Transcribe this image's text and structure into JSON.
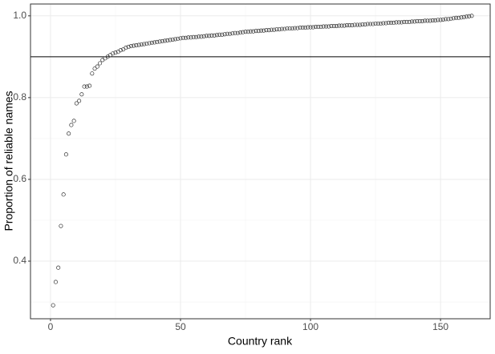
{
  "chart_data": {
    "type": "scatter",
    "x_label": "Country rank",
    "y_label": "Proportion of reliable names",
    "xlim": [
      -7.7,
      169.1
    ],
    "ylim": [
      0.259,
      1.029
    ],
    "xticks": [
      0,
      50,
      100,
      150
    ],
    "yticks": [
      0.4,
      0.6,
      0.8,
      {
        "value": 1,
        "label": "1.0"
      }
    ],
    "xminor": [
      25,
      75,
      125
    ],
    "yminor": [
      0.3,
      0.5,
      0.7,
      0.9
    ],
    "grid": true,
    "hline": 0.9,
    "color": "#333333",
    "x": [
      1,
      2,
      3,
      4,
      5,
      6,
      7,
      8,
      9,
      10,
      11,
      12,
      13,
      14,
      15,
      16,
      17,
      18,
      19,
      20,
      21,
      22,
      23,
      24,
      25,
      26,
      27,
      28,
      29,
      30,
      31,
      32,
      33,
      34,
      35,
      36,
      37,
      38,
      39,
      40,
      41,
      42,
      43,
      44,
      45,
      46,
      47,
      48,
      49,
      50,
      51,
      52,
      53,
      54,
      55,
      56,
      57,
      58,
      59,
      60,
      61,
      62,
      63,
      64,
      65,
      66,
      67,
      68,
      69,
      70,
      71,
      72,
      73,
      74,
      75,
      76,
      77,
      78,
      79,
      80,
      81,
      82,
      83,
      84,
      85,
      86,
      87,
      88,
      89,
      90,
      91,
      92,
      93,
      94,
      95,
      96,
      97,
      98,
      99,
      100,
      101,
      102,
      103,
      104,
      105,
      106,
      107,
      108,
      109,
      110,
      111,
      112,
      113,
      114,
      115,
      116,
      117,
      118,
      119,
      120,
      121,
      122,
      123,
      124,
      125,
      126,
      127,
      128,
      129,
      130,
      131,
      132,
      133,
      134,
      135,
      136,
      137,
      138,
      139,
      140,
      141,
      142,
      143,
      144,
      145,
      146,
      147,
      148,
      149,
      150,
      151,
      152,
      153,
      154,
      155,
      156,
      157,
      158,
      159,
      160,
      161,
      162
    ],
    "values": [
      0.292,
      0.349,
      0.384,
      0.486,
      0.563,
      0.661,
      0.712,
      0.733,
      0.743,
      0.786,
      0.792,
      0.808,
      0.827,
      0.827,
      0.829,
      0.859,
      0.871,
      0.876,
      0.884,
      0.892,
      0.896,
      0.9,
      0.904,
      0.908,
      0.91,
      0.912,
      0.916,
      0.918,
      0.922,
      0.924,
      0.926,
      0.927,
      0.928,
      0.929,
      0.93,
      0.931,
      0.932,
      0.933,
      0.934,
      0.935,
      0.936,
      0.937,
      0.938,
      0.939,
      0.94,
      0.941,
      0.942,
      0.943,
      0.944,
      0.945,
      0.946,
      0.946,
      0.947,
      0.947,
      0.948,
      0.948,
      0.949,
      0.949,
      0.95,
      0.951,
      0.951,
      0.952,
      0.952,
      0.953,
      0.954,
      0.954,
      0.955,
      0.956,
      0.956,
      0.957,
      0.958,
      0.958,
      0.959,
      0.96,
      0.961,
      0.961,
      0.962,
      0.962,
      0.963,
      0.963,
      0.964,
      0.964,
      0.965,
      0.965,
      0.966,
      0.966,
      0.967,
      0.967,
      0.968,
      0.968,
      0.969,
      0.969,
      0.969,
      0.97,
      0.97,
      0.971,
      0.971,
      0.971,
      0.972,
      0.972,
      0.972,
      0.973,
      0.973,
      0.973,
      0.974,
      0.974,
      0.974,
      0.975,
      0.975,
      0.975,
      0.976,
      0.976,
      0.976,
      0.977,
      0.977,
      0.977,
      0.978,
      0.978,
      0.978,
      0.979,
      0.979,
      0.98,
      0.98,
      0.98,
      0.981,
      0.981,
      0.981,
      0.982,
      0.982,
      0.983,
      0.983,
      0.983,
      0.984,
      0.984,
      0.984,
      0.985,
      0.985,
      0.985,
      0.986,
      0.986,
      0.987,
      0.987,
      0.987,
      0.988,
      0.988,
      0.988,
      0.989,
      0.989,
      0.99,
      0.99,
      0.991,
      0.992,
      0.992,
      0.993,
      0.994,
      0.995,
      0.995,
      0.996,
      0.997,
      0.998,
      0.999,
      1.0
    ]
  }
}
